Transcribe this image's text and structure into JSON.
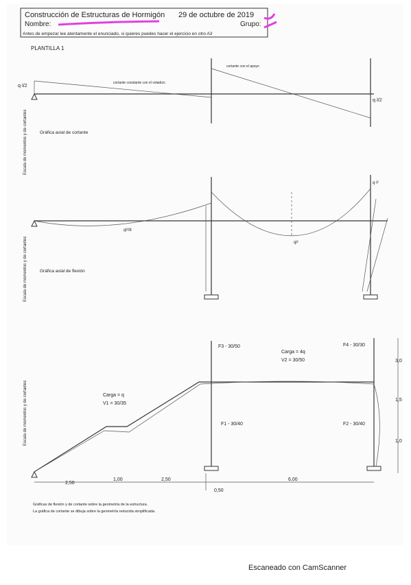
{
  "header": {
    "course": "Construcción de Estructuras de Hormigón",
    "date": "29 de octubre de 2019",
    "name_label": "Nombre:",
    "group_label": "Grupo:",
    "instructions": "Antes de empezar lee atentamente el enunciado, si quieres puedes hacer el ejercicio en otro A3"
  },
  "sheet_title": "PLANTILLA 1",
  "diagram_1": {
    "left_label": "q·l/2",
    "right_label": "q·l/2",
    "note_left": "cortante constante con el voladizo",
    "note_right": "cortante con el apoyo",
    "caption": "Gráfica axial de cortante",
    "scale_label": "Escala de momentos y de cortantes"
  },
  "diagram_2": {
    "left_label": "ql²/8",
    "mid_label": "ql²",
    "right_label": "q·l²",
    "caption": "Gráfica axial de flexión",
    "scale_label": "Escala de momentos y de cortantes"
  },
  "diagram_3": {
    "column_f3": "F3 - 30/50",
    "column_f4": "F4 - 30/30",
    "load_left": "Carga = q",
    "beam_v1": "V1 = 30/35",
    "load_right": "Carga = 4q",
    "beam_v2": "V2 = 30/50",
    "column_f1": "F1 - 30/40",
    "column_f2": "F2 - 30/40",
    "dims": [
      "2,50",
      "1,00",
      "2,50",
      "6,00",
      "0,50"
    ],
    "heights": [
      "3,0",
      "1,5",
      "1,0"
    ],
    "scale_label": "Escala de momentos y de cortantes"
  },
  "notes": [
    "Gráficas de flexión y de cortante sobre la geometría de la estructura.",
    "La gráfica de cortante se dibuja sobre la geometría reducida simplificada."
  ],
  "footer": "Escaneado con CamScanner"
}
